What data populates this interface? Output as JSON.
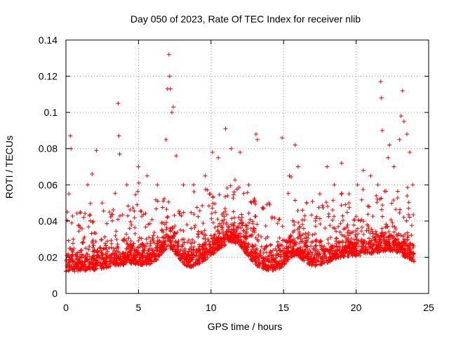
{
  "chart_data": {
    "type": "scatter",
    "title": "Day 050 of 2023, Rate Of TEC Index for receiver nlib",
    "xlabel": "GPS time / hours",
    "ylabel": "ROTI / TECUs",
    "xlim": [
      0,
      25
    ],
    "ylim": [
      0,
      0.14
    ],
    "xticks": [
      0,
      5,
      10,
      15,
      20,
      25
    ],
    "yticks": [
      0,
      0.02,
      0.04,
      0.06,
      0.08,
      0.1,
      0.12,
      0.14
    ],
    "grid": true,
    "marker": "plus",
    "series": [
      {
        "name": "ROTI",
        "color": "#ff0000",
        "points": [
          [
            0.1,
            0.045
          ],
          [
            0.2,
            0.055
          ],
          [
            0.3,
            0.087
          ],
          [
            0.35,
            0.08
          ],
          [
            0.5,
            0.03
          ],
          [
            1.0,
            0.045
          ],
          [
            1.5,
            0.06
          ],
          [
            1.8,
            0.066
          ],
          [
            2.1,
            0.079
          ],
          [
            2.5,
            0.05
          ],
          [
            3.0,
            0.045
          ],
          [
            3.6,
            0.105
          ],
          [
            3.65,
            0.087
          ],
          [
            3.7,
            0.077
          ],
          [
            4.2,
            0.06
          ],
          [
            5.0,
            0.07
          ],
          [
            5.6,
            0.065
          ],
          [
            6.3,
            0.06
          ],
          [
            6.9,
            0.085
          ],
          [
            7.0,
            0.113
          ],
          [
            7.1,
            0.132
          ],
          [
            7.15,
            0.12
          ],
          [
            7.2,
            0.113
          ],
          [
            7.3,
            0.1
          ],
          [
            7.4,
            0.103
          ],
          [
            7.6,
            0.076
          ],
          [
            8.1,
            0.06
          ],
          [
            8.8,
            0.06
          ],
          [
            9.6,
            0.065
          ],
          [
            10.1,
            0.078
          ],
          [
            10.5,
            0.075
          ],
          [
            11.0,
            0.091
          ],
          [
            11.4,
            0.08
          ],
          [
            12.0,
            0.078
          ],
          [
            12.6,
            0.06
          ],
          [
            13.1,
            0.088
          ],
          [
            13.2,
            0.085
          ],
          [
            14.0,
            0.05
          ],
          [
            14.9,
            0.086
          ],
          [
            15.4,
            0.065
          ],
          [
            15.8,
            0.082
          ],
          [
            16.0,
            0.07
          ],
          [
            16.6,
            0.05
          ],
          [
            17.5,
            0.055
          ],
          [
            18.0,
            0.07
          ],
          [
            18.5,
            0.06
          ],
          [
            19.0,
            0.072
          ],
          [
            19.5,
            0.05
          ],
          [
            20.1,
            0.06
          ],
          [
            20.5,
            0.068
          ],
          [
            21.0,
            0.065
          ],
          [
            21.5,
            0.06
          ],
          [
            21.7,
            0.117
          ],
          [
            21.75,
            0.108
          ],
          [
            21.8,
            0.09
          ],
          [
            22.3,
            0.082
          ],
          [
            22.6,
            0.07
          ],
          [
            23.0,
            0.085
          ],
          [
            23.1,
            0.098
          ],
          [
            23.2,
            0.112
          ],
          [
            23.3,
            0.095
          ],
          [
            23.5,
            0.088
          ],
          [
            23.7,
            0.078
          ],
          [
            23.9,
            0.06
          ]
        ],
        "baseline_band": [
          0.005,
          0.045
        ]
      }
    ]
  }
}
